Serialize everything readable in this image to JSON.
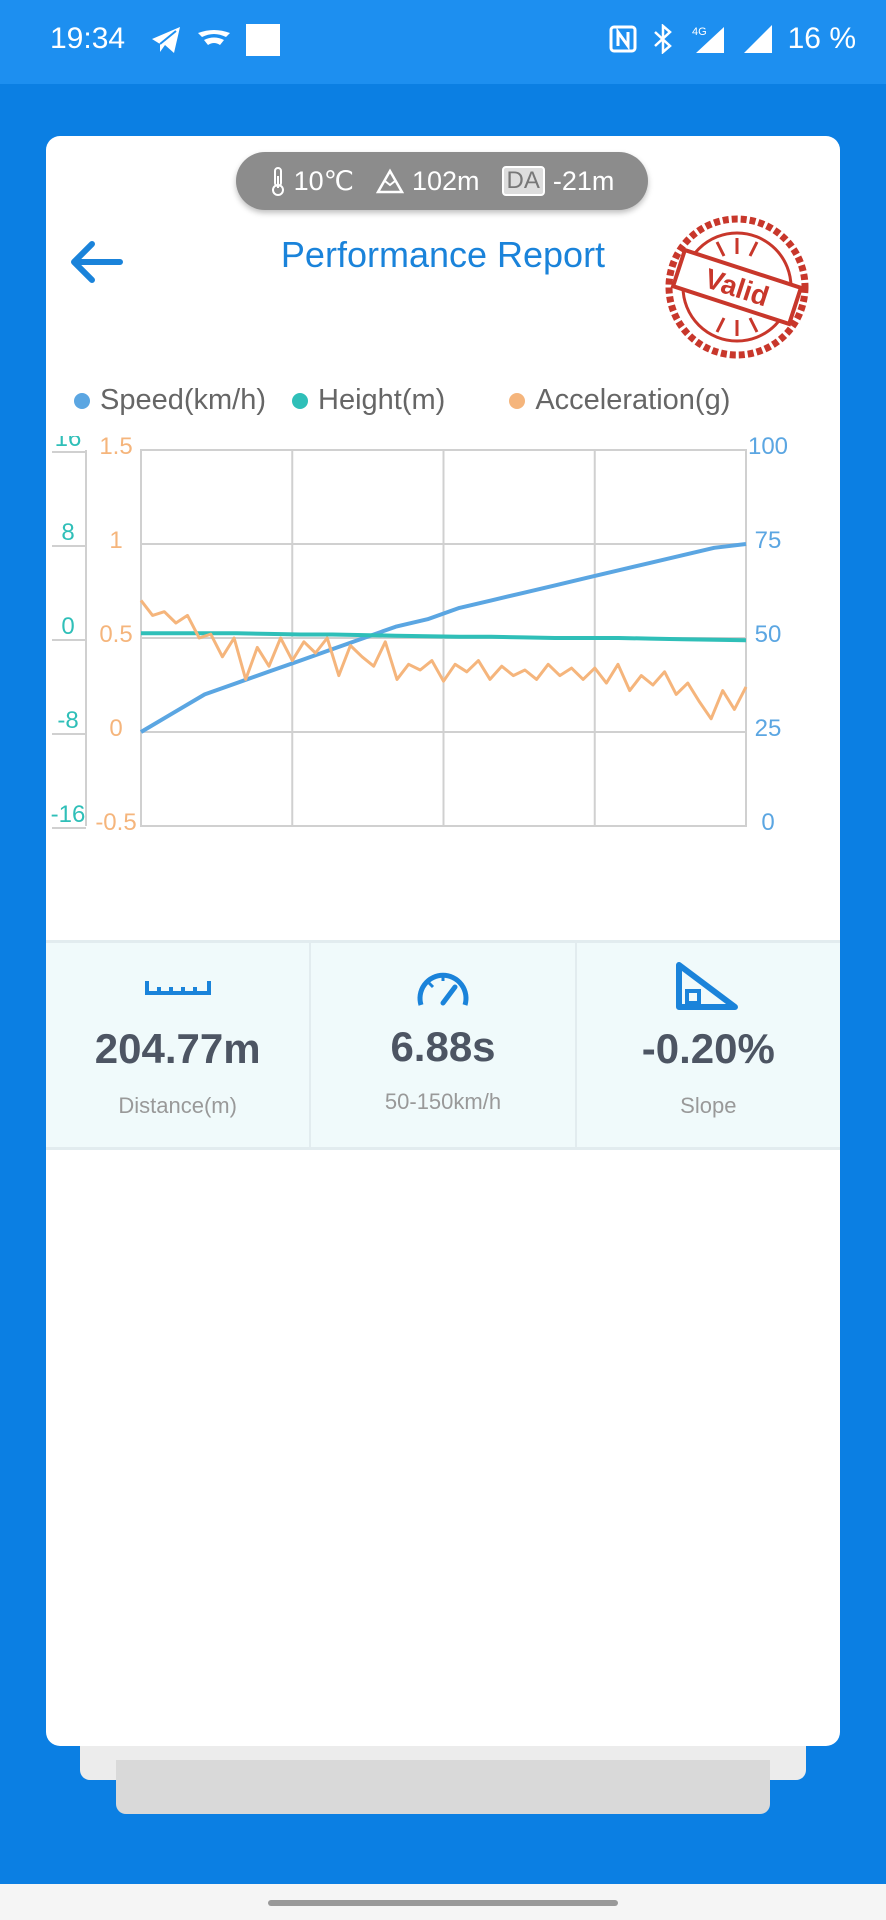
{
  "status": {
    "time": "19:34",
    "battery": "16 %",
    "network": "4G"
  },
  "header": {
    "temperature": "10℃",
    "altitude": "102m",
    "da_label": "DA",
    "density_altitude": "-21m",
    "title": "Performance Report",
    "stamp_text": "Valid"
  },
  "legend": {
    "speed": "Speed(km/h)",
    "height": "Height(m)",
    "acceleration": "Acceleration(g)"
  },
  "colors": {
    "speed": "#5ba6e2",
    "height": "#2fbfb8",
    "acceleration": "#f5b57c",
    "accent": "#1a83da"
  },
  "chart_data": {
    "type": "line",
    "x_divisions": 4,
    "axes": {
      "height_left": {
        "ticks": [
          "16",
          "8",
          "0",
          "-8",
          "-16"
        ],
        "range": [
          -16,
          16
        ]
      },
      "acceleration_left": {
        "ticks": [
          "1.5",
          "1",
          "0.5",
          "0",
          "-0.5"
        ],
        "range": [
          -0.5,
          1.5
        ]
      },
      "speed_right": {
        "ticks": [
          "100",
          "75",
          "50",
          "25",
          "0"
        ],
        "range": [
          0,
          100
        ]
      }
    },
    "series": [
      {
        "name": "Speed(km/h)",
        "axis": "speed_right",
        "values": [
          25,
          30,
          35,
          38,
          41,
          44,
          47,
          50,
          53,
          55,
          58,
          60,
          62,
          64,
          66,
          68,
          70,
          72,
          74,
          75
        ]
      },
      {
        "name": "Height(m)",
        "axis": "height_left",
        "values": [
          0.4,
          0.4,
          0.4,
          0.4,
          0.35,
          0.3,
          0.3,
          0.25,
          0.2,
          0.15,
          0.1,
          0.1,
          0.05,
          0.0,
          0.0,
          0.0,
          -0.05,
          -0.1,
          -0.15,
          -0.2
        ]
      },
      {
        "name": "Acceleration(g)",
        "axis": "acceleration_left",
        "values": [
          0.7,
          0.62,
          0.64,
          0.58,
          0.62,
          0.5,
          0.52,
          0.4,
          0.5,
          0.28,
          0.45,
          0.35,
          0.5,
          0.38,
          0.48,
          0.42,
          0.5,
          0.3,
          0.46,
          0.4,
          0.35,
          0.48,
          0.28,
          0.36,
          0.33,
          0.38,
          0.27,
          0.36,
          0.32,
          0.38,
          0.28,
          0.35,
          0.3,
          0.33,
          0.28,
          0.36,
          0.3,
          0.34,
          0.28,
          0.34,
          0.26,
          0.36,
          0.22,
          0.3,
          0.25,
          0.32,
          0.2,
          0.26,
          0.16,
          0.07,
          0.22,
          0.12,
          0.24
        ]
      }
    ]
  },
  "stats": [
    {
      "icon": "ruler-icon",
      "value": "204.77m",
      "label": "Distance(m)"
    },
    {
      "icon": "speedometer-icon",
      "value": "6.88s",
      "label": "50-150km/h"
    },
    {
      "icon": "slope-icon",
      "value": "-0.20%",
      "label": "Slope"
    }
  ]
}
